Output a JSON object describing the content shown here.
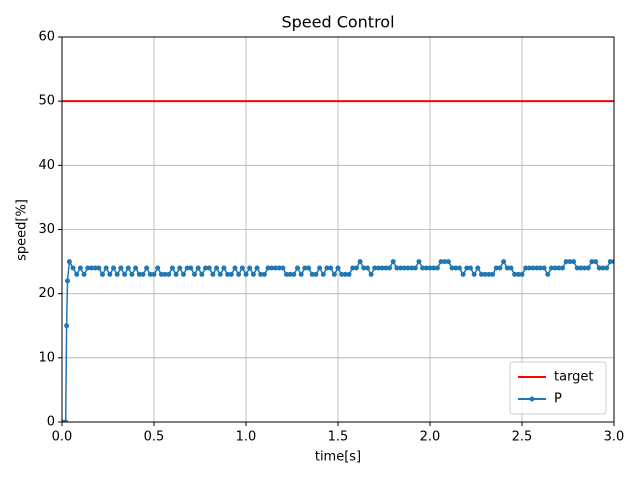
{
  "chart_data": {
    "type": "line",
    "title": "Speed Control",
    "x_label": "time[s]",
    "y_label": "speed[%]",
    "xlim": [
      0,
      3
    ],
    "ylim": [
      0,
      60
    ],
    "xticks": [
      {
        "value": 0,
        "label": "0.0"
      },
      0.5,
      {
        "value": 1,
        "label": "1.0"
      },
      1.5,
      {
        "value": 2,
        "label": "2.0"
      },
      2.5,
      {
        "value": 3,
        "label": "3.0"
      }
    ],
    "yticks": [
      0,
      10,
      20,
      30,
      40,
      50,
      60
    ],
    "grid": true,
    "legend": "lower right",
    "series": [
      {
        "name": "target",
        "color": "#ff0000",
        "marker": false,
        "x": [
          0,
          3
        ],
        "values": [
          50,
          50
        ]
      },
      {
        "name": "P",
        "color": "#1f77b4",
        "marker": true,
        "x": [
          0,
          0.02,
          0.025,
          0.03,
          0.04,
          0.06,
          0.08,
          0.1,
          0.12,
          0.14,
          0.16,
          0.18,
          0.2,
          0.22,
          0.24,
          0.26,
          0.28,
          0.3,
          0.32,
          0.34,
          0.36,
          0.38,
          0.4,
          0.42,
          0.44,
          0.46,
          0.48,
          0.5,
          0.52,
          0.54,
          0.56,
          0.58,
          0.6,
          0.62,
          0.64,
          0.66,
          0.68,
          0.7,
          0.72,
          0.74,
          0.76,
          0.78,
          0.8,
          0.82,
          0.84,
          0.86,
          0.88,
          0.9,
          0.92,
          0.94,
          0.96,
          0.98,
          1.0,
          1.02,
          1.04,
          1.06,
          1.08,
          1.1,
          1.12,
          1.14,
          1.16,
          1.18,
          1.2,
          1.22,
          1.24,
          1.26,
          1.28,
          1.3,
          1.32,
          1.34,
          1.36,
          1.38,
          1.4,
          1.42,
          1.44,
          1.46,
          1.48,
          1.5,
          1.52,
          1.54,
          1.56,
          1.58,
          1.6,
          1.62,
          1.64,
          1.66,
          1.68,
          1.7,
          1.72,
          1.74,
          1.76,
          1.78,
          1.8,
          1.82,
          1.84,
          1.86,
          1.88,
          1.9,
          1.92,
          1.94,
          1.96,
          1.98,
          2.0,
          2.02,
          2.04,
          2.06,
          2.08,
          2.1,
          2.12,
          2.14,
          2.16,
          2.18,
          2.2,
          2.22,
          2.24,
          2.26,
          2.28,
          2.3,
          2.32,
          2.34,
          2.36,
          2.38,
          2.4,
          2.42,
          2.44,
          2.46,
          2.48,
          2.5,
          2.52,
          2.54,
          2.56,
          2.58,
          2.6,
          2.62,
          2.64,
          2.66,
          2.68,
          2.7,
          2.72,
          2.74,
          2.76,
          2.78,
          2.8,
          2.82,
          2.84,
          2.86,
          2.88,
          2.9,
          2.92,
          2.94,
          2.96,
          2.98,
          3.0
        ],
        "values": [
          0,
          0,
          15,
          22,
          25,
          24,
          23,
          24,
          23,
          24,
          24,
          24,
          24,
          23,
          24,
          23,
          24,
          23,
          24,
          23,
          24,
          23,
          24,
          23,
          23,
          24,
          23,
          23,
          24,
          23,
          23,
          23,
          24,
          23,
          24,
          23,
          24,
          24,
          23,
          24,
          23,
          24,
          24,
          23,
          24,
          23,
          24,
          23,
          23,
          24,
          23,
          24,
          23,
          24,
          23,
          24,
          23,
          23,
          24,
          24,
          24,
          24,
          24,
          23,
          23,
          23,
          24,
          23,
          24,
          24,
          23,
          23,
          24,
          23,
          24,
          24,
          23,
          24,
          23,
          23,
          23,
          24,
          24,
          25,
          24,
          24,
          23,
          24,
          24,
          24,
          24,
          24,
          25,
          24,
          24,
          24,
          24,
          24,
          24,
          25,
          24,
          24,
          24,
          24,
          24,
          25,
          25,
          25,
          24,
          24,
          24,
          23,
          24,
          24,
          23,
          24,
          23,
          23,
          23,
          23,
          24,
          24,
          25,
          24,
          24,
          23,
          23,
          23,
          24,
          24,
          24,
          24,
          24,
          24,
          23,
          24,
          24,
          24,
          24,
          25,
          25,
          25,
          24,
          24,
          24,
          24,
          25,
          25,
          24,
          24,
          24,
          25,
          25
        ]
      }
    ]
  }
}
